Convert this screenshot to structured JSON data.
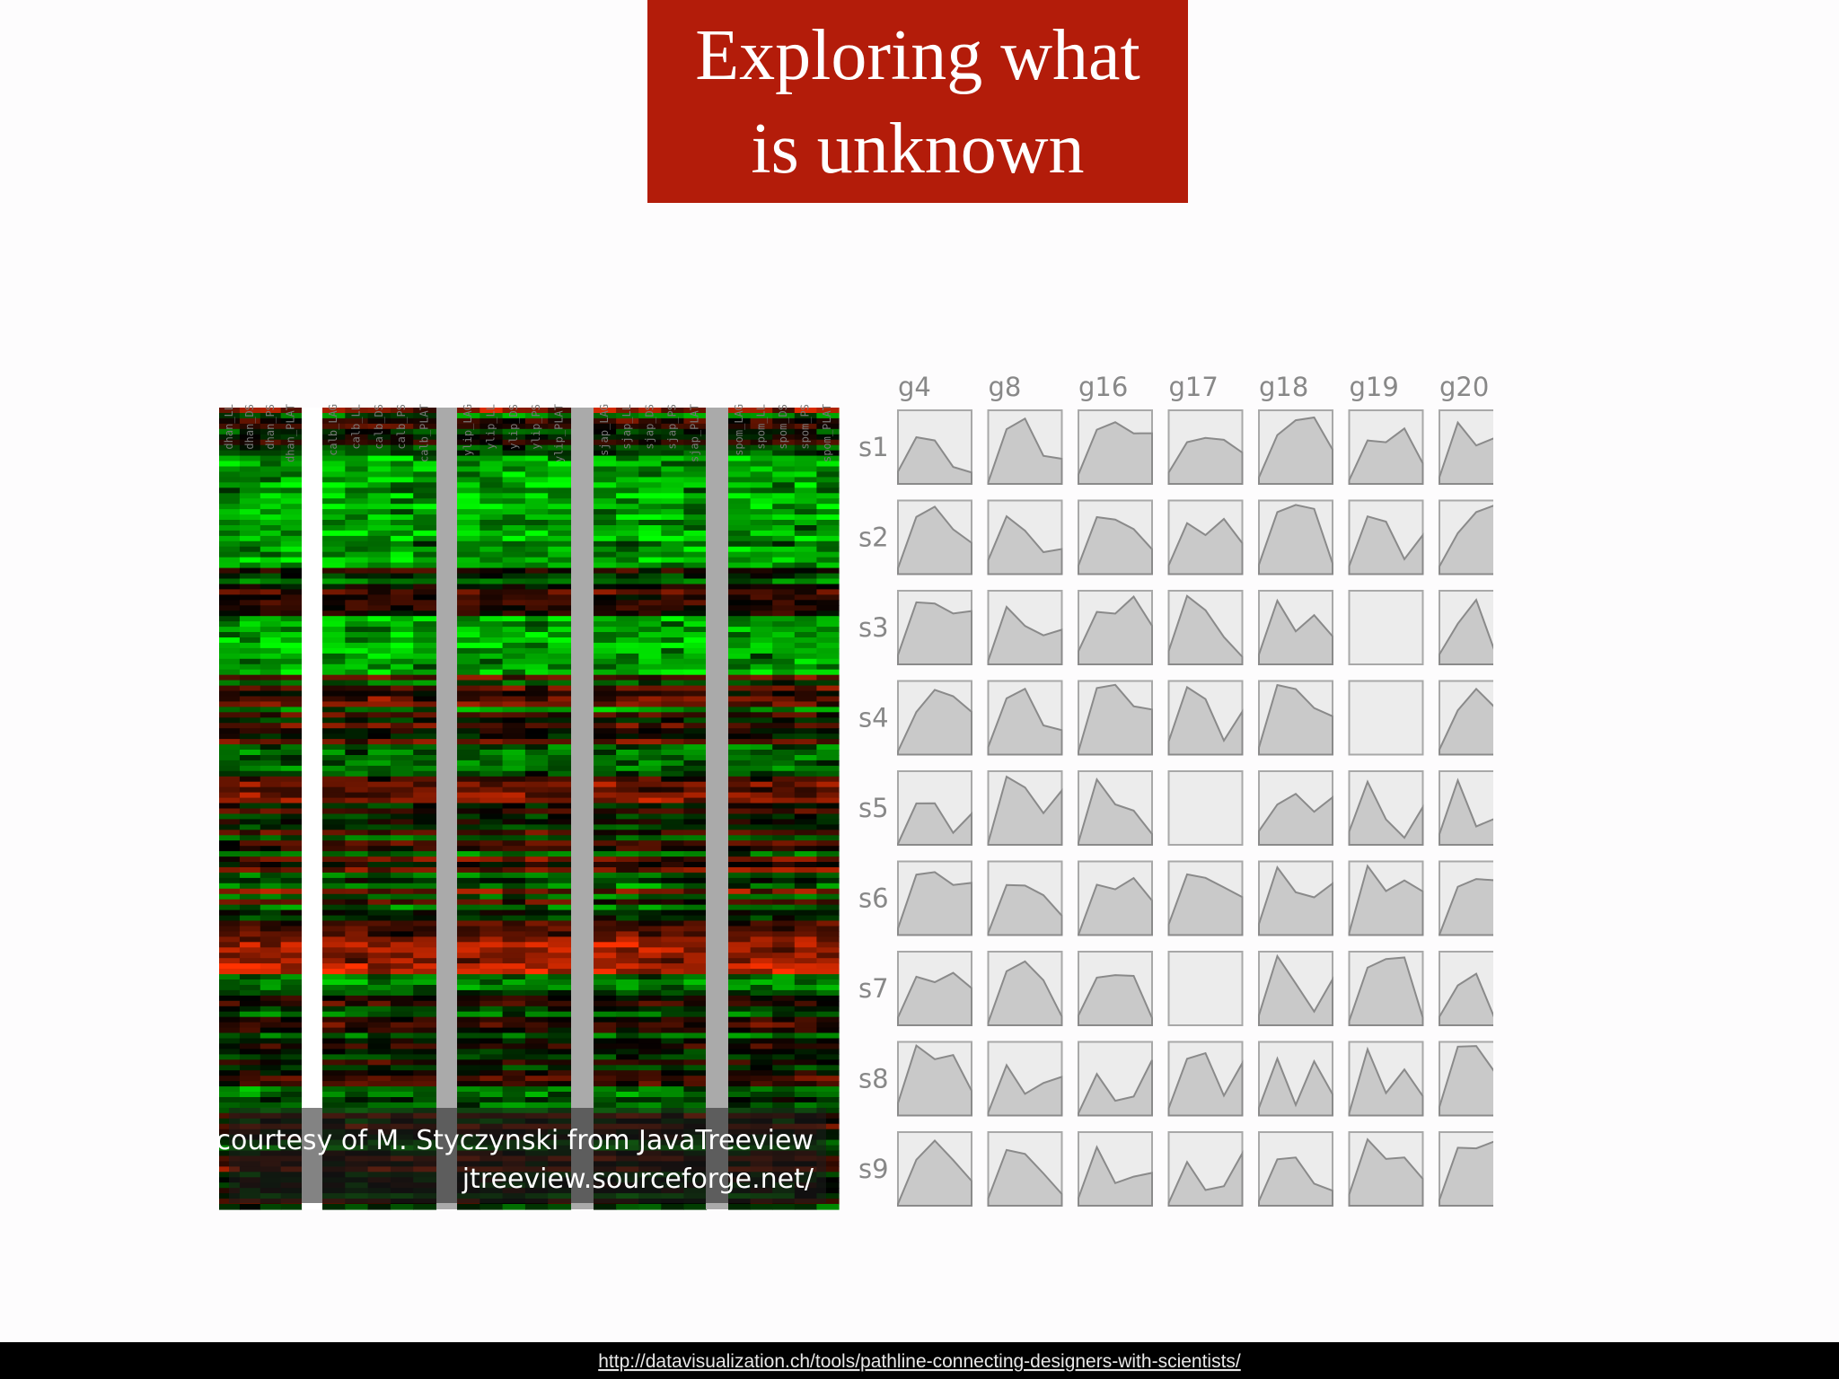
{
  "title": {
    "lines": [
      "Exploring what",
      "is unknown"
    ]
  },
  "heatmap": {
    "column_labels": [
      "dhan_LL",
      "dhan_DS",
      "dhan_PS",
      "dhan_PLAT",
      "calb_LAG",
      "calb_LL",
      "calb_DS",
      "calb_PS",
      "calb_PLAT",
      "ylip_LAG",
      "ylip_LL",
      "ylip_DS",
      "ylip_PS",
      "ylip_PLAT",
      "sjap_LAG",
      "sjap_LL",
      "sjap_DS",
      "sjap_PS",
      "sjap_PLAT",
      "spom_LAG",
      "spom_LL",
      "spom_DS",
      "spom_PS",
      "spom_PLAT"
    ],
    "caption": [
      "courtesy of M. Styczynski from JavaTreeview",
      "jtreeview.sourceforge.net/"
    ]
  },
  "small_multiples": {
    "columns": [
      "g4",
      "g8",
      "g16",
      "g17",
      "g18",
      "g19",
      "g20"
    ],
    "rows": [
      "s1",
      "s2",
      "s3",
      "s4",
      "s5",
      "s6",
      "s7",
      "s8",
      "s9"
    ]
  },
  "footer": {
    "link": "http://datavisualization.ch/tools/pathline-connecting-designers-with-scientists/"
  }
}
